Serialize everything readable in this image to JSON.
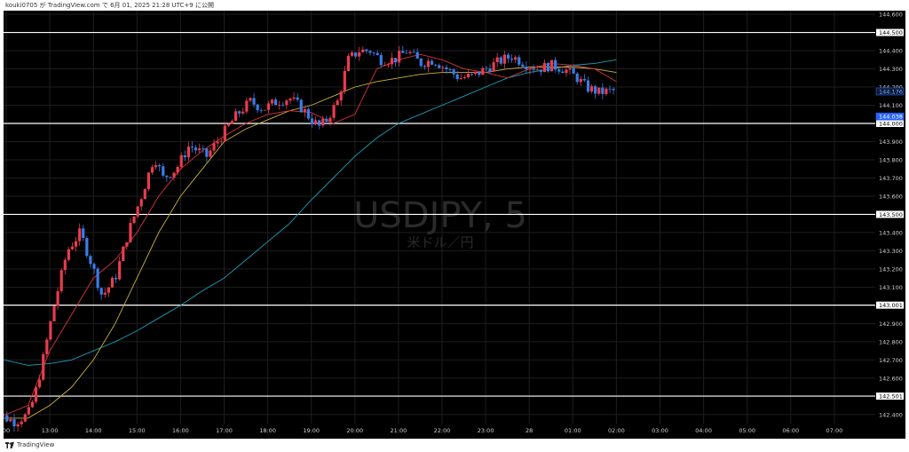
{
  "header": {
    "publish_info": "kouki0705 が TradingView.com で 6月 01, 2025 21:28 UTC+9 に公開"
  },
  "footer": {
    "brand": "TradingView"
  },
  "colors": {
    "background": "#000000",
    "grid": "#1e1e1e",
    "up": "#e83c4e",
    "down": "#3a7ce8",
    "ema_short": "#d8323c",
    "ema_mid": "#c9b23a",
    "ema_long": "#1aa0b8",
    "hline": "#ffffff",
    "last_price_bg": "#2962ff"
  },
  "chart_data": {
    "type": "candlestick",
    "symbol": "USDJPY, 5",
    "description": "米ドル／円",
    "x_labels": [
      "00",
      "13:00",
      "14:00",
      "15:00",
      "16:00",
      "17:00",
      "18:00",
      "19:00",
      "20:00",
      "21:00",
      "22:00",
      "23:00",
      "28",
      "01:00",
      "02:00",
      "03:00",
      "04:00",
      "05:00",
      "06:00",
      "07:00"
    ],
    "y_ticks": [
      "144.600",
      "144.400",
      "144.300",
      "144.200",
      "144.100",
      "143.900",
      "143.800",
      "143.700",
      "143.600",
      "143.400",
      "143.300",
      "143.200",
      "143.100",
      "142.900",
      "142.800",
      "142.700",
      "142.600",
      "142.400"
    ],
    "ylim": [
      142.35,
      144.62
    ],
    "horizontal_lines": [
      {
        "value": 144.5,
        "label": "144.500"
      },
      {
        "value": 144.0,
        "label": "144.000"
      },
      {
        "value": 143.5,
        "label": "143.500"
      },
      {
        "value": 143.001,
        "label": "143.001"
      },
      {
        "value": 142.501,
        "label": "142.501"
      }
    ],
    "last_price": {
      "value": 144.176,
      "label": "144.176"
    },
    "other_price": {
      "value": 144.038,
      "label": "144.038"
    },
    "ema_short_path": [
      [
        -0.4,
        142.42
      ],
      [
        0,
        142.4
      ],
      [
        0.5,
        142.45
      ],
      [
        1,
        142.75
      ],
      [
        1.5,
        142.95
      ],
      [
        2,
        143.15
      ],
      [
        2.5,
        143.25
      ],
      [
        3,
        143.4
      ],
      [
        3.5,
        143.6
      ],
      [
        4,
        143.75
      ],
      [
        4.5,
        143.85
      ],
      [
        5,
        143.93
      ],
      [
        5.5,
        144.0
      ],
      [
        6,
        144.05
      ],
      [
        6.5,
        144.07
      ],
      [
        7,
        144.06
      ],
      [
        7.5,
        144.0
      ],
      [
        8,
        144.05
      ],
      [
        8.5,
        144.3
      ],
      [
        9,
        144.35
      ],
      [
        9.5,
        144.38
      ],
      [
        10,
        144.35
      ],
      [
        10.5,
        144.3
      ],
      [
        11,
        144.28
      ],
      [
        11.5,
        144.25
      ],
      [
        12,
        144.3
      ],
      [
        12.5,
        144.33
      ],
      [
        13,
        144.32
      ],
      [
        13.5,
        144.3
      ],
      [
        14,
        144.23
      ]
    ],
    "ema_mid_path": [
      [
        -0.4,
        142.38
      ],
      [
        0.5,
        142.38
      ],
      [
        1,
        142.45
      ],
      [
        1.5,
        142.55
      ],
      [
        2,
        142.7
      ],
      [
        2.5,
        142.9
      ],
      [
        3,
        143.15
      ],
      [
        3.5,
        143.4
      ],
      [
        4,
        143.6
      ],
      [
        4.5,
        143.75
      ],
      [
        5,
        143.9
      ],
      [
        5.5,
        143.97
      ],
      [
        6,
        144.02
      ],
      [
        6.5,
        144.07
      ],
      [
        7,
        144.1
      ],
      [
        7.5,
        144.15
      ],
      [
        8,
        144.2
      ],
      [
        8.5,
        144.23
      ],
      [
        9,
        144.25
      ],
      [
        9.5,
        144.27
      ],
      [
        10,
        144.28
      ],
      [
        10.5,
        144.28
      ],
      [
        11,
        144.28
      ],
      [
        11.5,
        144.3
      ],
      [
        12,
        144.31
      ],
      [
        12.5,
        144.31
      ],
      [
        13,
        144.31
      ],
      [
        13.5,
        144.3
      ],
      [
        14,
        144.28
      ]
    ],
    "ema_long_path": [
      [
        -0.4,
        142.72
      ],
      [
        0.5,
        142.67
      ],
      [
        1,
        142.68
      ],
      [
        1.5,
        142.7
      ],
      [
        2,
        142.75
      ],
      [
        2.5,
        142.8
      ],
      [
        3,
        142.86
      ],
      [
        3.5,
        142.93
      ],
      [
        4,
        143.0
      ],
      [
        4.5,
        143.08
      ],
      [
        5,
        143.15
      ],
      [
        5.5,
        143.25
      ],
      [
        6,
        143.35
      ],
      [
        6.5,
        143.45
      ],
      [
        7,
        143.58
      ],
      [
        7.5,
        143.7
      ],
      [
        8,
        143.82
      ],
      [
        8.5,
        143.92
      ],
      [
        9,
        144.0
      ],
      [
        9.5,
        144.05
      ],
      [
        10,
        144.1
      ],
      [
        10.5,
        144.15
      ],
      [
        11,
        144.2
      ],
      [
        11.5,
        144.25
      ],
      [
        12,
        144.28
      ],
      [
        12.5,
        144.3
      ],
      [
        13,
        144.32
      ],
      [
        13.5,
        144.33
      ],
      [
        14,
        144.35
      ]
    ],
    "candle_anchors": [
      [
        -0.4,
        142.42
      ],
      [
        0.2,
        142.36
      ],
      [
        0.5,
        142.4
      ],
      [
        0.65,
        142.5
      ],
      [
        0.8,
        142.65
      ],
      [
        1.1,
        143.0
      ],
      [
        1.4,
        143.3
      ],
      [
        1.7,
        143.4
      ],
      [
        2.0,
        143.2
      ],
      [
        2.2,
        143.05
      ],
      [
        2.5,
        143.15
      ],
      [
        2.8,
        143.4
      ],
      [
        3.1,
        143.6
      ],
      [
        3.4,
        143.82
      ],
      [
        3.6,
        143.7
      ],
      [
        3.9,
        143.75
      ],
      [
        4.2,
        143.88
      ],
      [
        4.6,
        143.82
      ],
      [
        4.9,
        143.92
      ],
      [
        5.3,
        144.05
      ],
      [
        5.6,
        144.12
      ],
      [
        5.9,
        144.08
      ],
      [
        6.2,
        144.12
      ],
      [
        6.5,
        144.14
      ],
      [
        6.8,
        144.08
      ],
      [
        7.0,
        144.02
      ],
      [
        7.2,
        143.98
      ],
      [
        7.35,
        144.02
      ],
      [
        7.6,
        144.12
      ],
      [
        7.85,
        144.35
      ],
      [
        8.1,
        144.4
      ],
      [
        8.35,
        144.4
      ],
      [
        8.6,
        144.35
      ],
      [
        8.9,
        144.35
      ],
      [
        9.2,
        144.4
      ],
      [
        9.5,
        144.33
      ],
      [
        9.8,
        144.35
      ],
      [
        10.1,
        144.3
      ],
      [
        10.4,
        144.25
      ],
      [
        10.7,
        144.26
      ],
      [
        11.0,
        144.3
      ],
      [
        11.3,
        144.34
      ],
      [
        11.6,
        144.37
      ],
      [
        11.9,
        144.33
      ],
      [
        12.2,
        144.3
      ],
      [
        12.5,
        144.32
      ],
      [
        12.8,
        144.3
      ],
      [
        13.1,
        144.25
      ],
      [
        13.3,
        144.2
      ],
      [
        13.6,
        144.17
      ],
      [
        13.9,
        144.18
      ],
      [
        14.0,
        144.18
      ]
    ]
  }
}
